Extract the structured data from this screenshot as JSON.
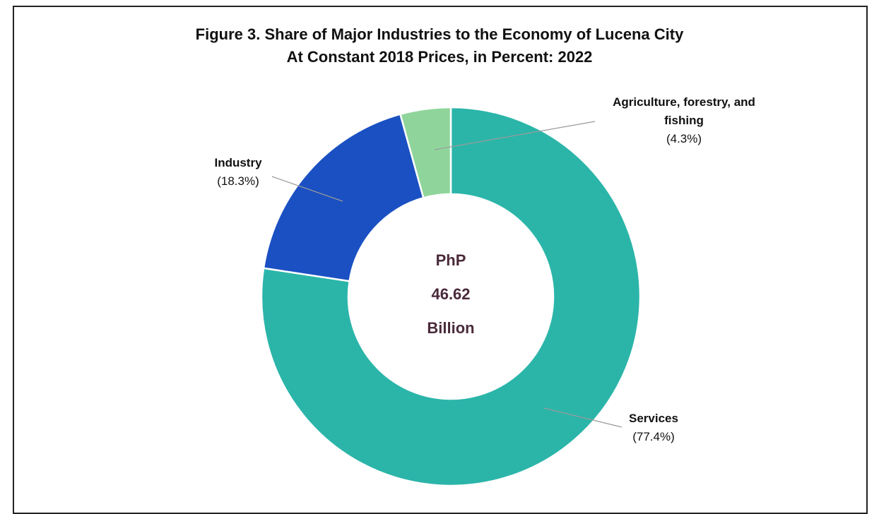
{
  "chart_data": {
    "type": "donut",
    "title": "Figure 3. Share of Major Industries to the Economy of Lucena City",
    "subtitle": "At Constant 2018 Prices, in Percent: 2022",
    "center_text": [
      "PhP",
      "46.62",
      "Billion"
    ],
    "categories": [
      "Services",
      "Industry",
      "Agriculture, forestry, and fishing"
    ],
    "values": [
      77.4,
      18.3,
      4.3
    ],
    "value_labels": [
      "(77.4%)",
      "(18.3%)",
      "(4.3%)"
    ],
    "colors": [
      "#2bb5a9",
      "#1a50c2",
      "#8fd59b"
    ]
  }
}
